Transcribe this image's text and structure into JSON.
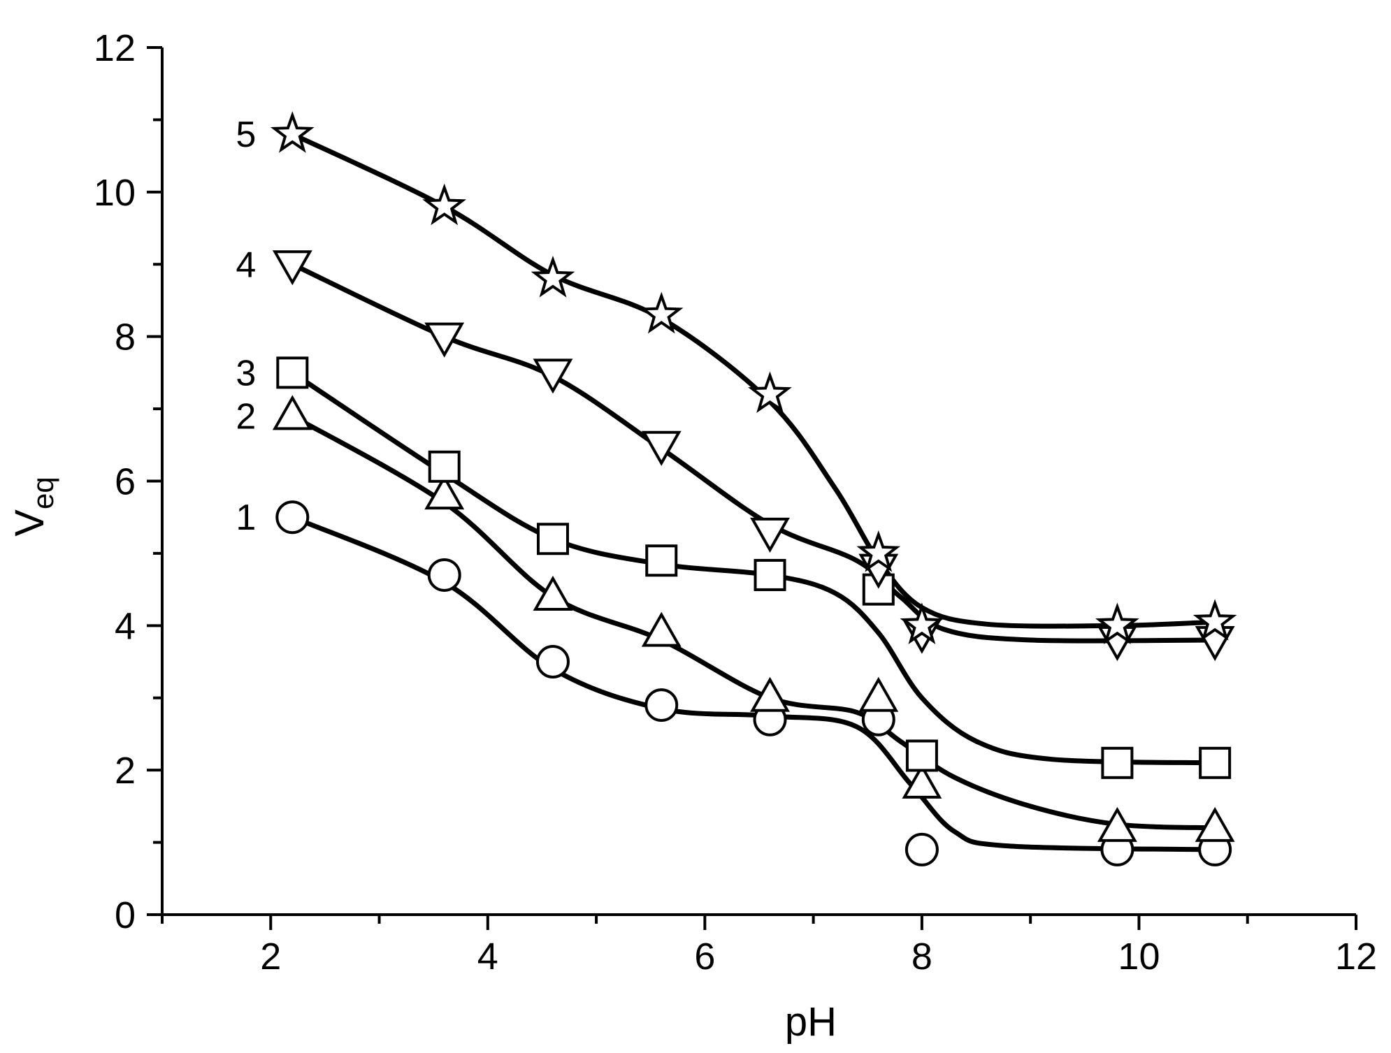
{
  "chart_data": {
    "type": "line",
    "xlabel": "pH",
    "ylabel_main": "V",
    "ylabel_sub": "eq",
    "xlim": [
      1,
      12
    ],
    "ylim": [
      0,
      12
    ],
    "x_major_ticks": [
      2,
      4,
      6,
      8,
      10,
      12
    ],
    "x_minor_ticks": [
      1,
      3,
      5,
      7,
      9,
      11
    ],
    "y_major_ticks": [
      0,
      2,
      4,
      6,
      8,
      10,
      12
    ],
    "y_minor_ticks": [
      1,
      3,
      5,
      7,
      9,
      11
    ],
    "grid": false,
    "series": [
      {
        "label": "1",
        "marker": "circle",
        "x": [
          2.2,
          3.6,
          4.6,
          5.6,
          6.6,
          7.6,
          8.0,
          9.8,
          10.7
        ],
        "y": [
          5.5,
          4.7,
          3.5,
          2.9,
          2.7,
          2.7,
          0.9,
          0.9,
          0.9
        ],
        "fit": [
          [
            2.2,
            5.5
          ],
          [
            3.6,
            4.6
          ],
          [
            4.6,
            3.4
          ],
          [
            5.6,
            2.85
          ],
          [
            6.6,
            2.75
          ],
          [
            7.4,
            2.6
          ],
          [
            7.9,
            1.8
          ],
          [
            8.3,
            1.15
          ],
          [
            8.8,
            0.95
          ],
          [
            10.7,
            0.9
          ]
        ]
      },
      {
        "label": "2",
        "marker": "triangle-up",
        "x": [
          2.2,
          3.6,
          4.6,
          5.6,
          6.6,
          7.6,
          8.0,
          9.8,
          10.7
        ],
        "y": [
          6.9,
          5.8,
          4.4,
          3.9,
          3.0,
          3.0,
          1.8,
          1.2,
          1.2
        ],
        "fit": [
          [
            2.2,
            6.9
          ],
          [
            3.6,
            5.7
          ],
          [
            4.6,
            4.4
          ],
          [
            5.6,
            3.8
          ],
          [
            6.6,
            3.0
          ],
          [
            7.4,
            2.8
          ],
          [
            7.8,
            2.4
          ],
          [
            8.3,
            1.9
          ],
          [
            9.0,
            1.5
          ],
          [
            9.8,
            1.25
          ],
          [
            10.7,
            1.2
          ]
        ]
      },
      {
        "label": "3",
        "marker": "square",
        "x": [
          2.2,
          3.6,
          4.6,
          5.6,
          6.6,
          7.6,
          8.0,
          9.8,
          10.7
        ],
        "y": [
          7.5,
          6.2,
          5.2,
          4.9,
          4.7,
          4.5,
          2.2,
          2.1,
          2.1
        ],
        "fit": [
          [
            2.2,
            7.5
          ],
          [
            3.6,
            6.1
          ],
          [
            4.6,
            5.2
          ],
          [
            5.6,
            4.85
          ],
          [
            6.6,
            4.7
          ],
          [
            7.2,
            4.45
          ],
          [
            7.6,
            3.9
          ],
          [
            8.0,
            3.0
          ],
          [
            8.5,
            2.4
          ],
          [
            9.2,
            2.15
          ],
          [
            10.7,
            2.1
          ]
        ]
      },
      {
        "label": "4",
        "marker": "triangle-down",
        "x": [
          2.2,
          3.6,
          4.6,
          5.6,
          6.6,
          7.6,
          8.0,
          9.8,
          10.7
        ],
        "y": [
          9.0,
          8.0,
          7.5,
          6.5,
          5.3,
          4.8,
          3.9,
          3.8,
          3.8
        ],
        "fit": [
          [
            2.2,
            9.0
          ],
          [
            3.6,
            8.0
          ],
          [
            4.6,
            7.45
          ],
          [
            5.6,
            6.45
          ],
          [
            6.6,
            5.4
          ],
          [
            7.4,
            4.9
          ],
          [
            7.8,
            4.4
          ],
          [
            8.2,
            3.95
          ],
          [
            9.0,
            3.8
          ],
          [
            10.7,
            3.8
          ]
        ]
      },
      {
        "label": "5",
        "marker": "star",
        "x": [
          2.2,
          3.6,
          4.6,
          5.6,
          6.6,
          7.6,
          8.0,
          9.8,
          10.7
        ],
        "y": [
          10.8,
          9.8,
          8.8,
          8.3,
          7.2,
          5.0,
          4.0,
          4.0,
          4.05
        ],
        "fit": [
          [
            2.2,
            10.8
          ],
          [
            3.6,
            9.8
          ],
          [
            4.6,
            8.85
          ],
          [
            5.6,
            8.25
          ],
          [
            6.6,
            7.1
          ],
          [
            7.2,
            5.9
          ],
          [
            7.6,
            4.9
          ],
          [
            8.0,
            4.25
          ],
          [
            8.6,
            4.02
          ],
          [
            9.8,
            4.0
          ],
          [
            10.7,
            4.05
          ]
        ]
      }
    ]
  }
}
